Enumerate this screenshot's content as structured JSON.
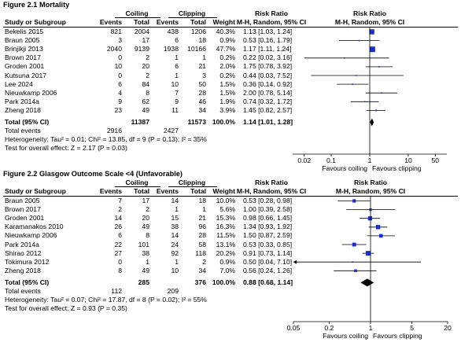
{
  "headers": {
    "coiling": "Coiling",
    "clipping": "Clipping",
    "risk_ratio": "Risk Ratio",
    "study": "Study or Subgroup",
    "events": "Events",
    "total": "Total",
    "weight": "Weight",
    "method": "M-H, Random, 95% CI"
  },
  "chart_data": [
    {
      "type": "forest",
      "title": "Figure 2.1 Mortality",
      "scale": "log",
      "xlim": [
        0.01,
        100
      ],
      "axis_ticks": [
        "0.02",
        "0.1",
        "1",
        "10",
        "50"
      ],
      "axis_tick_values": [
        0.02,
        0.1,
        1,
        10,
        50
      ],
      "favours_left": "Favours coiling",
      "favours_right": "Favours clipping",
      "studies": [
        {
          "name": "Bekelis 2015",
          "e1": "821",
          "t1": "2004",
          "e2": "438",
          "t2": "1206",
          "weight": "40.3%",
          "ci": "1.13 [1.03, 1.24]",
          "rr": 1.13,
          "lo": 1.03,
          "hi": 1.24,
          "w": 40.3
        },
        {
          "name": "Braun 2005",
          "e1": "3",
          "t1": "17",
          "e2": "6",
          "t2": "18",
          "weight": "0.9%",
          "ci": "0.53 [0.16, 1.79]",
          "rr": 0.53,
          "lo": 0.16,
          "hi": 1.79,
          "w": 0.9
        },
        {
          "name": "Brinjikji 2013",
          "e1": "2040",
          "t1": "9139",
          "e2": "1938",
          "t2": "10166",
          "weight": "47.7%",
          "ci": "1.17 [1.11, 1.24]",
          "rr": 1.17,
          "lo": 1.11,
          "hi": 1.24,
          "w": 47.7
        },
        {
          "name": "Brown 2017",
          "e1": "0",
          "t1": "2",
          "e2": "1",
          "t2": "1",
          "weight": "0.2%",
          "ci": "0.22 [0.02, 3.16]",
          "rr": 0.22,
          "lo": 0.02,
          "hi": 3.16,
          "w": 0.2
        },
        {
          "name": "Groden 2001",
          "e1": "10",
          "t1": "20",
          "e2": "6",
          "t2": "21",
          "weight": "2.0%",
          "ci": "1.75 [0.78, 3.92]",
          "rr": 1.75,
          "lo": 0.78,
          "hi": 3.92,
          "w": 2.0
        },
        {
          "name": "Kutsuna 2017",
          "e1": "0",
          "t1": "2",
          "e2": "1",
          "t2": "3",
          "weight": "0.2%",
          "ci": "0.44 [0.03, 7.52]",
          "rr": 0.44,
          "lo": 0.03,
          "hi": 7.52,
          "w": 0.2
        },
        {
          "name": "Lee 2024",
          "e1": "6",
          "t1": "84",
          "e2": "10",
          "t2": "50",
          "weight": "1.5%",
          "ci": "0.36 [0.14, 0.92]",
          "rr": 0.36,
          "lo": 0.14,
          "hi": 0.92,
          "w": 1.5
        },
        {
          "name": "Nieuwkamp 2006",
          "e1": "4",
          "t1": "8",
          "e2": "7",
          "t2": "28",
          "weight": "1.5%",
          "ci": "2.00 [0.78, 5.14]",
          "rr": 2.0,
          "lo": 0.78,
          "hi": 5.14,
          "w": 1.5
        },
        {
          "name": "Park 2014a",
          "e1": "9",
          "t1": "62",
          "e2": "9",
          "t2": "46",
          "weight": "1.9%",
          "ci": "0.74 [0.32, 1.72]",
          "rr": 0.74,
          "lo": 0.32,
          "hi": 1.72,
          "w": 1.9
        },
        {
          "name": "Zheng 2018",
          "e1": "23",
          "t1": "49",
          "e2": "11",
          "t2": "34",
          "weight": "3.9%",
          "ci": "1.45 [0.82, 2.57]",
          "rr": 1.45,
          "lo": 0.82,
          "hi": 2.57,
          "w": 3.9
        }
      ],
      "total": {
        "label": "Total (95% CI)",
        "t1": "11387",
        "t2": "11573",
        "weight": "100.0%",
        "ci": "1.14 [1.01, 1.28]",
        "rr": 1.14,
        "lo": 1.01,
        "hi": 1.28
      },
      "total_events": {
        "label": "Total events",
        "e1": "2916",
        "e2": "2427"
      },
      "heterogeneity": "Heterogeneity: Tau² = 0.01; Chi² = 13.85, df = 9 (P = 0.13); I² = 35%",
      "overall_effect": "Test for overall effect: Z = 2.17 (P = 0.03)"
    },
    {
      "type": "forest",
      "title": "Figure 2.2 Glasgow Outcome Scale <4 (Unfavorable)",
      "scale": "log",
      "xlim": [
        0.05,
        20
      ],
      "axis_ticks": [
        "0.05",
        "0.2",
        "1",
        "5",
        "20"
      ],
      "axis_tick_values": [
        0.05,
        0.2,
        1,
        5,
        20
      ],
      "favours_left": "Favours coiling",
      "favours_right": "Favours clipping",
      "studies": [
        {
          "name": "Braun 2005",
          "e1": "7",
          "t1": "17",
          "e2": "14",
          "t2": "18",
          "weight": "10.0%",
          "ci": "0.53 [0.28, 0.98]",
          "rr": 0.53,
          "lo": 0.28,
          "hi": 0.98,
          "w": 10.0
        },
        {
          "name": "Brown 2017",
          "e1": "2",
          "t1": "2",
          "e2": "1",
          "t2": "1",
          "weight": "5.6%",
          "ci": "1.00 [0.39, 2.58]",
          "rr": 1.0,
          "lo": 0.39,
          "hi": 2.58,
          "w": 5.6
        },
        {
          "name": "Groden 2001",
          "e1": "14",
          "t1": "20",
          "e2": "15",
          "t2": "21",
          "weight": "15.3%",
          "ci": "0.98 [0.66, 1.45]",
          "rr": 0.98,
          "lo": 0.66,
          "hi": 1.45,
          "w": 15.3
        },
        {
          "name": "Karamanakos 2010",
          "e1": "26",
          "t1": "49",
          "e2": "38",
          "t2": "96",
          "weight": "16.3%",
          "ci": "1.34 [0.93, 1.92]",
          "rr": 1.34,
          "lo": 0.93,
          "hi": 1.92,
          "w": 16.3
        },
        {
          "name": "Nieuwkamp 2006",
          "e1": "6",
          "t1": "8",
          "e2": "14",
          "t2": "28",
          "weight": "11.5%",
          "ci": "1.50 [0.87, 2.59]",
          "rr": 1.5,
          "lo": 0.87,
          "hi": 2.59,
          "w": 11.5
        },
        {
          "name": "Park 2014a",
          "e1": "22",
          "t1": "101",
          "e2": "24",
          "t2": "58",
          "weight": "13.1%",
          "ci": "0.53 [0.33, 0.85]",
          "rr": 0.53,
          "lo": 0.33,
          "hi": 0.85,
          "w": 13.1
        },
        {
          "name": "Shirao 2012",
          "e1": "27",
          "t1": "38",
          "e2": "92",
          "t2": "118",
          "weight": "20.2%",
          "ci": "0.91 [0.73, 1.14]",
          "rr": 0.91,
          "lo": 0.73,
          "hi": 1.14,
          "w": 20.2
        },
        {
          "name": "Tokimura 2012",
          "e1": "0",
          "t1": "1",
          "e2": "1",
          "t2": "2",
          "weight": "0.9%",
          "ci": "0.50 [0.04, 7.10]",
          "rr": 0.5,
          "lo": 0.04,
          "hi": 7.1,
          "w": 0.9
        },
        {
          "name": "Zheng 2018",
          "e1": "8",
          "t1": "49",
          "e2": "10",
          "t2": "34",
          "weight": "7.0%",
          "ci": "0.56 [0.24, 1.26]",
          "rr": 0.56,
          "lo": 0.24,
          "hi": 1.26,
          "w": 7.0
        }
      ],
      "total": {
        "label": "Total (95% CI)",
        "t1": "285",
        "t2": "376",
        "weight": "100.0%",
        "ci": "0.88 [0.68, 1.14]",
        "rr": 0.88,
        "lo": 0.68,
        "hi": 1.14
      },
      "total_events": {
        "label": "Total events",
        "e1": "112",
        "e2": "209"
      },
      "heterogeneity": "Heterogeneity: Tau² = 0.07; Chi² = 17.87, df = 8 (P = 0.02); I² = 55%",
      "overall_effect": "Test for overall effect: Z = 0.93 (P = 0.35)"
    }
  ]
}
